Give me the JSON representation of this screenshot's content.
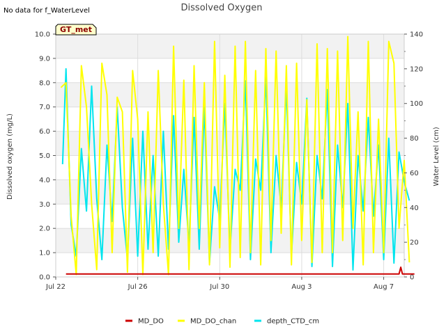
{
  "chart_data": {
    "type": "line",
    "title": "Dissolved Oxygen",
    "note": "No data for f_WaterLevel",
    "badge": "GT_met",
    "xlabel": "",
    "ylabel": "Dissolved oxygen (mg/L)",
    "y2label": "Water Level (cm)",
    "ylim": [
      0,
      10
    ],
    "y2lim": [
      0,
      140
    ],
    "xlim": [
      "2024-07-22",
      "2024-08-08"
    ],
    "yticks": [
      "0.0",
      "1.0",
      "2.0",
      "3.0",
      "4.0",
      "5.0",
      "6.0",
      "7.0",
      "8.0",
      "9.0",
      "10.0"
    ],
    "y2ticks": [
      "0",
      "20",
      "40",
      "60",
      "80",
      "100",
      "120",
      "140"
    ],
    "xticks": [
      {
        "date": "2024-07-22",
        "label": "Jul 22"
      },
      {
        "date": "2024-07-26",
        "label": "Jul 26"
      },
      {
        "date": "2024-07-30",
        "label": "Jul 30"
      },
      {
        "date": "2024-08-03",
        "label": "Aug 3"
      },
      {
        "date": "2024-08-07",
        "label": "Aug 7"
      }
    ],
    "grid": true,
    "legend_position": "bottom",
    "series": [
      {
        "name": "MD_DO",
        "axis": "left",
        "color": "#cc0000",
        "points": [
          [
            "2024-07-22 12:00",
            0.12
          ],
          [
            "2024-07-25 00:00",
            0.12
          ],
          [
            "2024-07-27 12:00",
            0.12
          ],
          [
            "2024-07-29 12:00",
            0.12
          ],
          [
            "2024-08-01 12:00",
            0.12
          ],
          [
            "2024-08-04 12:00",
            0.12
          ],
          [
            "2024-08-06 12:00",
            0.12
          ],
          [
            "2024-08-07 18:00",
            0.12
          ],
          [
            "2024-08-07 20:00",
            0.4
          ],
          [
            "2024-08-07 22:00",
            0.12
          ],
          [
            "2024-08-08 12:00",
            0.12
          ]
        ]
      },
      {
        "name": "MD_DO_chan",
        "axis": "left",
        "color": "#ffff00",
        "points": [
          [
            "2024-07-22 06:00",
            7.8
          ],
          [
            "2024-07-22 12:00",
            8.0
          ],
          [
            "2024-07-22 18:00",
            2.5
          ],
          [
            "2024-07-23 00:00",
            0.1
          ],
          [
            "2024-07-23 06:00",
            8.7
          ],
          [
            "2024-07-23 12:00",
            7.0
          ],
          [
            "2024-07-23 18:00",
            3.0
          ],
          [
            "2024-07-24 00:00",
            0.3
          ],
          [
            "2024-07-24 06:00",
            8.8
          ],
          [
            "2024-07-24 12:00",
            7.5
          ],
          [
            "2024-07-24 18:00",
            1.0
          ],
          [
            "2024-07-25 00:00",
            7.4
          ],
          [
            "2024-07-25 06:00",
            6.8
          ],
          [
            "2024-07-25 12:00",
            0.2
          ],
          [
            "2024-07-25 18:00",
            8.5
          ],
          [
            "2024-07-26 00:00",
            6.5
          ],
          [
            "2024-07-26 06:00",
            0.1
          ],
          [
            "2024-07-26 12:00",
            6.8
          ],
          [
            "2024-07-26 18:00",
            1.0
          ],
          [
            "2024-07-27 00:00",
            8.5
          ],
          [
            "2024-07-27 06:00",
            3.0
          ],
          [
            "2024-07-27 12:00",
            0.1
          ],
          [
            "2024-07-27 18:00",
            9.5
          ],
          [
            "2024-07-28 00:00",
            2.0
          ],
          [
            "2024-07-28 06:00",
            8.1
          ],
          [
            "2024-07-28 12:00",
            0.3
          ],
          [
            "2024-07-28 18:00",
            8.7
          ],
          [
            "2024-07-29 00:00",
            2.0
          ],
          [
            "2024-07-29 06:00",
            8.0
          ],
          [
            "2024-07-29 12:00",
            0.5
          ],
          [
            "2024-07-29 18:00",
            9.7
          ],
          [
            "2024-07-30 00:00",
            1.2
          ],
          [
            "2024-07-30 06:00",
            8.3
          ],
          [
            "2024-07-30 12:00",
            0.4
          ],
          [
            "2024-07-30 18:00",
            9.5
          ],
          [
            "2024-07-31 00:00",
            0.8
          ],
          [
            "2024-07-31 06:00",
            9.7
          ],
          [
            "2024-07-31 12:00",
            1.0
          ],
          [
            "2024-07-31 18:00",
            8.5
          ],
          [
            "2024-08-01 00:00",
            0.5
          ],
          [
            "2024-08-01 06:00",
            9.4
          ],
          [
            "2024-08-01 12:00",
            1.5
          ],
          [
            "2024-08-01 18:00",
            9.3
          ],
          [
            "2024-08-02 00:00",
            1.8
          ],
          [
            "2024-08-02 06:00",
            8.7
          ],
          [
            "2024-08-02 12:00",
            0.5
          ],
          [
            "2024-08-02 18:00",
            8.8
          ],
          [
            "2024-08-03 00:00",
            1.5
          ],
          [
            "2024-08-03 06:00",
            7.3
          ],
          [
            "2024-08-03 12:00",
            0.6
          ],
          [
            "2024-08-03 18:00",
            9.6
          ],
          [
            "2024-08-04 00:00",
            1.0
          ],
          [
            "2024-08-04 06:00",
            9.4
          ],
          [
            "2024-08-04 12:00",
            1.0
          ],
          [
            "2024-08-04 18:00",
            9.3
          ],
          [
            "2024-08-05 00:00",
            1.5
          ],
          [
            "2024-08-05 06:00",
            9.9
          ],
          [
            "2024-08-05 12:00",
            2.0
          ],
          [
            "2024-08-05 18:00",
            6.8
          ],
          [
            "2024-08-06 00:00",
            0.5
          ],
          [
            "2024-08-06 06:00",
            9.7
          ],
          [
            "2024-08-06 12:00",
            1.0
          ],
          [
            "2024-08-06 18:00",
            6.5
          ],
          [
            "2024-08-07 00:00",
            1.0
          ],
          [
            "2024-08-07 06:00",
            9.7
          ],
          [
            "2024-08-07 12:00",
            8.8
          ],
          [
            "2024-08-07 18:00",
            2.0
          ],
          [
            "2024-08-08 00:00",
            4.8
          ],
          [
            "2024-08-08 06:00",
            0.6
          ]
        ]
      },
      {
        "name": "depth_CTD_cm",
        "axis": "right",
        "color": "#00e5ee",
        "points": [
          [
            "2024-07-22 08:00",
            65
          ],
          [
            "2024-07-22 12:00",
            120
          ],
          [
            "2024-07-22 18:00",
            30
          ],
          [
            "2024-07-23 00:00",
            12
          ],
          [
            "2024-07-23 06:00",
            74
          ],
          [
            "2024-07-23 12:00",
            38
          ],
          [
            "2024-07-23 18:00",
            110
          ],
          [
            "2024-07-24 00:00",
            45
          ],
          [
            "2024-07-24 06:00",
            10
          ],
          [
            "2024-07-24 12:00",
            76
          ],
          [
            "2024-07-24 18:00",
            32
          ],
          [
            "2024-07-25 00:00",
            98
          ],
          [
            "2024-07-25 06:00",
            40
          ],
          [
            "2024-07-25 12:00",
            10
          ],
          [
            "2024-07-25 18:00",
            80
          ],
          [
            "2024-07-26 00:00",
            12
          ],
          [
            "2024-07-26 06:00",
            84
          ],
          [
            "2024-07-26 12:00",
            16
          ],
          [
            "2024-07-26 18:00",
            70
          ],
          [
            "2024-07-27 00:00",
            12
          ],
          [
            "2024-07-27 06:00",
            84
          ],
          [
            "2024-07-27 12:00",
            16
          ],
          [
            "2024-07-27 18:00",
            93
          ],
          [
            "2024-07-28 00:00",
            20
          ],
          [
            "2024-07-28 06:00",
            62
          ],
          [
            "2024-07-28 12:00",
            18
          ],
          [
            "2024-07-28 18:00",
            92
          ],
          [
            "2024-07-29 00:00",
            16
          ],
          [
            "2024-07-29 06:00",
            98
          ],
          [
            "2024-07-29 12:00",
            8
          ],
          [
            "2024-07-29 18:00",
            52
          ],
          [
            "2024-07-30 00:00",
            33
          ],
          [
            "2024-07-30 06:00",
            100
          ],
          [
            "2024-07-30 12:00",
            15
          ],
          [
            "2024-07-30 18:00",
            62
          ],
          [
            "2024-07-31 00:00",
            50
          ],
          [
            "2024-07-31 06:00",
            113
          ],
          [
            "2024-07-31 12:00",
            10
          ],
          [
            "2024-07-31 18:00",
            68
          ],
          [
            "2024-08-01 00:00",
            50
          ],
          [
            "2024-08-01 06:00",
            115
          ],
          [
            "2024-08-01 12:00",
            14
          ],
          [
            "2024-08-01 18:00",
            70
          ],
          [
            "2024-08-02 00:00",
            40
          ],
          [
            "2024-08-02 06:00",
            110
          ],
          [
            "2024-08-02 12:00",
            12
          ],
          [
            "2024-08-02 18:00",
            66
          ],
          [
            "2024-08-03 00:00",
            42
          ],
          [
            "2024-08-03 06:00",
            103
          ],
          [
            "2024-08-03 12:00",
            6
          ],
          [
            "2024-08-03 18:00",
            70
          ],
          [
            "2024-08-04 00:00",
            45
          ],
          [
            "2024-08-04 06:00",
            108
          ],
          [
            "2024-08-04 12:00",
            6
          ],
          [
            "2024-08-04 18:00",
            76
          ],
          [
            "2024-08-05 00:00",
            40
          ],
          [
            "2024-08-05 06:00",
            100
          ],
          [
            "2024-08-05 12:00",
            4
          ],
          [
            "2024-08-05 18:00",
            70
          ],
          [
            "2024-08-06 00:00",
            38
          ],
          [
            "2024-08-06 06:00",
            92
          ],
          [
            "2024-08-06 12:00",
            35
          ],
          [
            "2024-08-06 18:00",
            76
          ],
          [
            "2024-08-07 00:00",
            10
          ],
          [
            "2024-08-07 06:00",
            80
          ],
          [
            "2024-08-07 12:00",
            8
          ],
          [
            "2024-08-07 18:00",
            72
          ],
          [
            "2024-08-08 00:00",
            55
          ],
          [
            "2024-08-08 06:00",
            44
          ]
        ]
      }
    ]
  }
}
